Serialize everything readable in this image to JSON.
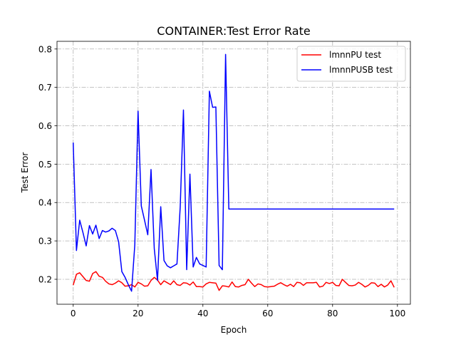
{
  "chart_data": {
    "type": "line",
    "title": "CONTAINER:Test Error Rate",
    "xlabel": "Epoch",
    "ylabel": "Test Error",
    "xlim": [
      -5,
      104
    ],
    "ylim": [
      0.135,
      0.82
    ],
    "xticks": [
      0,
      20,
      40,
      60,
      80,
      100
    ],
    "yticks": [
      0.2,
      0.3,
      0.4,
      0.5,
      0.6,
      0.7,
      0.8
    ],
    "grid": true,
    "legend_position": "upper right",
    "colors": {
      "ImmnPU test": "#ff0000",
      "ImmnPUSB test": "#0000ff"
    },
    "x": [
      0,
      1,
      2,
      3,
      4,
      5,
      6,
      7,
      8,
      9,
      10,
      11,
      12,
      13,
      14,
      15,
      16,
      17,
      18,
      19,
      20,
      21,
      22,
      23,
      24,
      25,
      26,
      27,
      28,
      29,
      30,
      31,
      32,
      33,
      34,
      35,
      36,
      37,
      38,
      39,
      40,
      41,
      42,
      43,
      44,
      45,
      46,
      47,
      48,
      49,
      50,
      51,
      52,
      53,
      54,
      55,
      56,
      57,
      58,
      59,
      60,
      61,
      62,
      63,
      64,
      65,
      66,
      67,
      68,
      69,
      70,
      71,
      72,
      73,
      74,
      75,
      76,
      77,
      78,
      79,
      80,
      81,
      82,
      83,
      84,
      85,
      86,
      87,
      88,
      89,
      90,
      91,
      92,
      93,
      94,
      95,
      96,
      97,
      98,
      99
    ],
    "series": [
      {
        "name": "lmnnPU test",
        "color": "#ff0000",
        "values": [
          0.185,
          0.213,
          0.217,
          0.207,
          0.197,
          0.195,
          0.215,
          0.22,
          0.208,
          0.205,
          0.195,
          0.188,
          0.186,
          0.19,
          0.196,
          0.191,
          0.182,
          0.183,
          0.186,
          0.18,
          0.192,
          0.188,
          0.182,
          0.183,
          0.197,
          0.205,
          0.198,
          0.186,
          0.196,
          0.191,
          0.186,
          0.196,
          0.186,
          0.184,
          0.191,
          0.19,
          0.185,
          0.193,
          0.181,
          0.181,
          0.18,
          0.188,
          0.192,
          0.191,
          0.19,
          0.171,
          0.183,
          0.182,
          0.18,
          0.193,
          0.181,
          0.18,
          0.184,
          0.186,
          0.2,
          0.19,
          0.181,
          0.188,
          0.186,
          0.181,
          0.18,
          0.181,
          0.182,
          0.187,
          0.191,
          0.186,
          0.182,
          0.187,
          0.181,
          0.192,
          0.191,
          0.184,
          0.191,
          0.191,
          0.191,
          0.192,
          0.18,
          0.182,
          0.192,
          0.189,
          0.192,
          0.184,
          0.183,
          0.2,
          0.192,
          0.184,
          0.183,
          0.185,
          0.192,
          0.187,
          0.18,
          0.184,
          0.191,
          0.19,
          0.181,
          0.187,
          0.18,
          0.185,
          0.196,
          0.179
        ]
      },
      {
        "name": "lmnnPUSB test",
        "color": "#0000ff",
        "values": [
          0.556,
          0.275,
          0.354,
          0.322,
          0.287,
          0.34,
          0.318,
          0.341,
          0.306,
          0.327,
          0.323,
          0.326,
          0.333,
          0.327,
          0.298,
          0.22,
          0.205,
          0.186,
          0.169,
          0.29,
          0.638,
          0.391,
          0.354,
          0.316,
          0.486,
          0.28,
          0.197,
          0.389,
          0.249,
          0.235,
          0.23,
          0.235,
          0.24,
          0.388,
          0.641,
          0.225,
          0.474,
          0.232,
          0.257,
          0.24,
          0.236,
          0.232,
          0.69,
          0.648,
          0.649,
          0.236,
          0.225,
          0.786,
          0.383,
          0.383,
          0.383,
          0.383,
          0.383,
          0.383,
          0.383,
          0.383,
          0.383,
          0.383,
          0.383,
          0.383,
          0.383,
          0.383,
          0.383,
          0.383,
          0.383,
          0.383,
          0.383,
          0.383,
          0.383,
          0.383,
          0.383,
          0.383,
          0.383,
          0.383,
          0.383,
          0.383,
          0.383,
          0.383,
          0.383,
          0.383,
          0.383,
          0.383,
          0.383,
          0.383,
          0.383,
          0.383,
          0.383,
          0.383,
          0.383,
          0.383,
          0.383,
          0.383,
          0.383,
          0.383,
          0.383,
          0.383,
          0.383,
          0.383,
          0.383,
          0.383
        ]
      }
    ]
  }
}
